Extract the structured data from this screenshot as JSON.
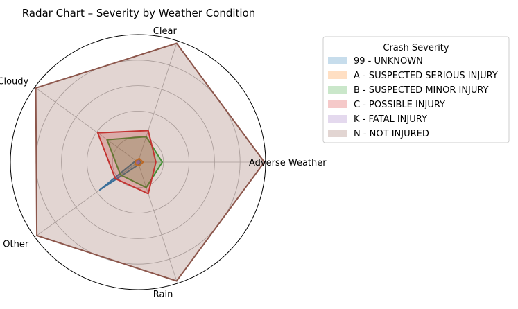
{
  "chart_data": {
    "type": "radar",
    "title": "Radar Chart – Severity by Weather Condition",
    "axes": [
      "Adverse Weather",
      "Clear",
      "Cloudy",
      "Other",
      "Rain"
    ],
    "rmax": 1.0,
    "grid": true,
    "legend": {
      "title": "Crash Severity",
      "placement": "outside right"
    },
    "series": [
      {
        "name": "99 - UNKNOWN",
        "color": "#1f77b4",
        "values": [
          0.02,
          0.02,
          0.02,
          0.37,
          0.02
        ]
      },
      {
        "name": "A - SUSPECTED SERIOUS INJURY",
        "color": "#ff7f0e",
        "values": [
          0.04,
          0.03,
          0.02,
          0.03,
          0.03
        ]
      },
      {
        "name": "B - SUSPECTED MINOR INJURY",
        "color": "#2ca02c",
        "values": [
          0.19,
          0.21,
          0.3,
          0.17,
          0.21
        ]
      },
      {
        "name": "C - POSSIBLE INJURY",
        "color": "#d62728",
        "values": [
          0.14,
          0.26,
          0.39,
          0.22,
          0.26
        ]
      },
      {
        "name": "K - FATAL INJURY",
        "color": "#9467bd",
        "values": [
          0.01,
          0.01,
          0.01,
          0.01,
          0.01
        ]
      },
      {
        "name": "N - NOT INJURED",
        "color": "#8c564b",
        "values": [
          0.99,
          0.98,
          0.99,
          0.98,
          0.98
        ]
      }
    ]
  }
}
